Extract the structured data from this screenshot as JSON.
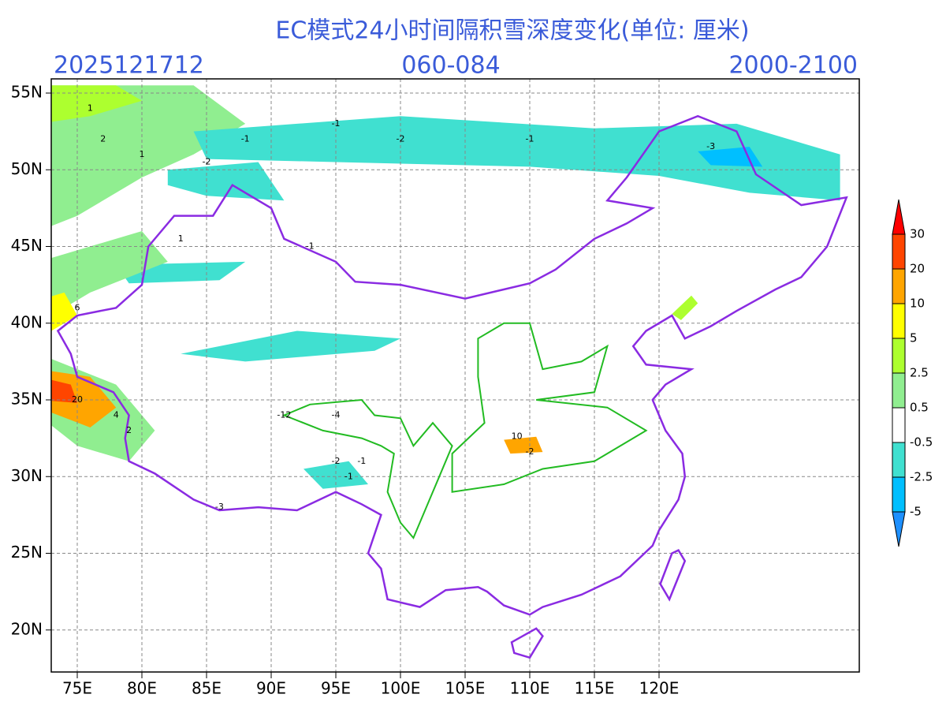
{
  "header": {
    "title": "EC模式24小时间隔积雪深度变化(单位: 厘米)",
    "init_time": "2025121712",
    "forecast_range": "060-084",
    "members": "2000-2100"
  },
  "map": {
    "lat_labels": [
      "55N",
      "50N",
      "45N",
      "40N",
      "35N",
      "30N",
      "25N",
      "20N"
    ],
    "lon_labels": [
      "75E",
      "80E",
      "85E",
      "90E",
      "95E",
      "100E",
      "105E",
      "110E",
      "115E",
      "120E"
    ],
    "contour_labels": [
      "1",
      "2",
      "1",
      "-1",
      "-2",
      "-3",
      "-1",
      "-1",
      "-2",
      "1",
      "-1",
      "-4",
      "-12",
      "-2",
      "-1",
      "10",
      "-2",
      "-1",
      "4",
      "6",
      "20",
      "2",
      "-3"
    ]
  },
  "colorbar": [
    {
      "label": "-5",
      "color": "#00bfff"
    },
    {
      "label": "-2.5",
      "color": "#40e0d0"
    },
    {
      "label": "-0.5",
      "color": "#ffffff"
    },
    {
      "label": "0.5",
      "color": "#90ee90"
    },
    {
      "label": "2.5",
      "color": "#adff2f"
    },
    {
      "label": "5",
      "color": "#ffff00"
    },
    {
      "label": "10",
      "color": "#ffa500"
    },
    {
      "label": "20",
      "color": "#ff4500"
    },
    {
      "label": "30",
      "color": "#ff0000"
    }
  ],
  "colorbar_low_color": "#1e90ff"
}
